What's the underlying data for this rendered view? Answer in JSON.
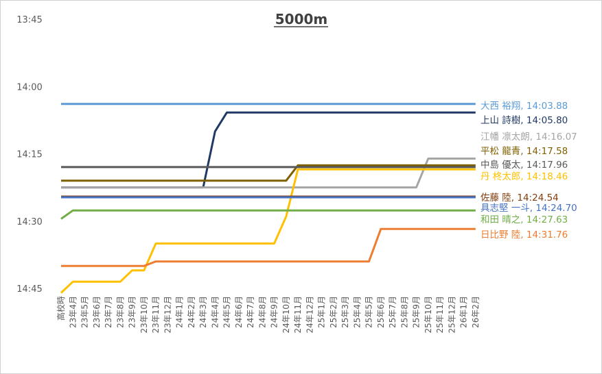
{
  "chart_data": {
    "type": "line",
    "title": "5000m",
    "xlabel": "",
    "ylabel": "",
    "y_reversed": true,
    "ylim": [
      "13:45",
      "14:45"
    ],
    "y_ticks": [
      "13:45",
      "14:00",
      "14:15",
      "14:30",
      "14:45"
    ],
    "categories": [
      "高校時",
      "23年4月",
      "23年5月",
      "23年6月",
      "23年7月",
      "23年8月",
      "23年9月",
      "23年10月",
      "23年11月",
      "23年12月",
      "24年1月",
      "24年2月",
      "24年3月",
      "24年4月",
      "24年5月",
      "24年6月",
      "24年7月",
      "24年8月",
      "24年9月",
      "24年10月",
      "24年11月",
      "24年12月",
      "25年1月",
      "25年2月",
      "25年3月",
      "25年4月",
      "25年5月",
      "25年6月",
      "25年7月",
      "25年8月",
      "25年9月",
      "25年10月",
      "25年11月",
      "25年12月",
      "26年1月",
      "26年2月"
    ],
    "grid": false,
    "legend": "right-end labels",
    "series": [
      {
        "label": "大西 裕翔, 14:03.88",
        "color": "#5b9bd5",
        "values": [
          843.88,
          843.88,
          843.88,
          843.88,
          843.88,
          843.88,
          843.88,
          843.88,
          843.88,
          843.88,
          843.88,
          843.88,
          843.88,
          843.88,
          843.88,
          843.88,
          843.88,
          843.88,
          843.88,
          843.88,
          843.88,
          843.88,
          843.88,
          843.88,
          843.88,
          843.88,
          843.88,
          843.88,
          843.88,
          843.88,
          843.88,
          843.88,
          843.88,
          843.88,
          843.88,
          843.88
        ]
      },
      {
        "label": "上山 詩樹, 14:05.80",
        "color": "#203864",
        "values": [
          862.5,
          862.5,
          862.5,
          862.5,
          862.5,
          862.5,
          862.5,
          862.5,
          862.5,
          862.5,
          862.5,
          862.5,
          862.5,
          850.0,
          845.8,
          845.8,
          845.8,
          845.8,
          845.8,
          845.8,
          845.8,
          845.8,
          845.8,
          845.8,
          845.8,
          845.8,
          845.8,
          845.8,
          845.8,
          845.8,
          845.8,
          845.8,
          845.8,
          845.8,
          845.8,
          845.8
        ]
      },
      {
        "label": "江幡 凛太朗, 14:16.07",
        "color": "#a5a5a5",
        "values": [
          862.5,
          862.5,
          862.5,
          862.5,
          862.5,
          862.5,
          862.5,
          862.5,
          862.5,
          862.5,
          862.5,
          862.5,
          862.5,
          862.5,
          862.5,
          862.5,
          862.5,
          862.5,
          862.5,
          862.5,
          862.5,
          862.5,
          862.5,
          862.5,
          862.5,
          862.5,
          862.5,
          862.5,
          862.5,
          862.5,
          862.5,
          856.07,
          856.07,
          856.07,
          856.07,
          856.07
        ]
      },
      {
        "label": "平松 龍青, 14:17.58",
        "color": "#7f6000",
        "values": [
          861.0,
          861.0,
          861.0,
          861.0,
          861.0,
          861.0,
          861.0,
          861.0,
          861.0,
          861.0,
          861.0,
          861.0,
          861.0,
          861.0,
          861.0,
          861.0,
          861.0,
          861.0,
          861.0,
          861.0,
          857.58,
          857.58,
          857.58,
          857.58,
          857.58,
          857.58,
          857.58,
          857.58,
          857.58,
          857.58,
          857.58,
          857.58,
          857.58,
          857.58,
          857.58,
          857.58
        ]
      },
      {
        "label": "中島 優太, 14:17.96",
        "color": "#595959",
        "values": [
          857.96,
          857.96,
          857.96,
          857.96,
          857.96,
          857.96,
          857.96,
          857.96,
          857.96,
          857.96,
          857.96,
          857.96,
          857.96,
          857.96,
          857.96,
          857.96,
          857.96,
          857.96,
          857.96,
          857.96,
          857.96,
          857.96,
          857.96,
          857.96,
          857.96,
          857.96,
          857.96,
          857.96,
          857.96,
          857.96,
          857.96,
          857.96,
          857.96,
          857.96,
          857.96,
          857.96
        ]
      },
      {
        "label": "丹 柊太郎, 14:18.46",
        "color": "#ffc000",
        "values": [
          886.0,
          883.5,
          883.5,
          883.5,
          883.5,
          883.5,
          881.0,
          881.0,
          875.0,
          875.0,
          875.0,
          875.0,
          875.0,
          875.0,
          875.0,
          875.0,
          875.0,
          875.0,
          875.0,
          869.0,
          858.46,
          858.46,
          858.46,
          858.46,
          858.46,
          858.46,
          858.46,
          858.46,
          858.46,
          858.46,
          858.46,
          858.46,
          858.46,
          858.46,
          858.46,
          858.46
        ]
      },
      {
        "label": "佐藤 陸, 14:24.54",
        "color": "#843c0c",
        "values": [
          864.54,
          864.54,
          864.54,
          864.54,
          864.54,
          864.54,
          864.54,
          864.54,
          864.54,
          864.54,
          864.54,
          864.54,
          864.54,
          864.54,
          864.54,
          864.54,
          864.54,
          864.54,
          864.54,
          864.54,
          864.54,
          864.54,
          864.54,
          864.54,
          864.54,
          864.54,
          864.54,
          864.54,
          864.54,
          864.54,
          864.54,
          864.54,
          864.54,
          864.54,
          864.54,
          864.54
        ]
      },
      {
        "label": "具志堅 一斗, 14:24.70",
        "color": "#4472c4",
        "values": [
          864.7,
          864.7,
          864.7,
          864.7,
          864.7,
          864.7,
          864.7,
          864.7,
          864.7,
          864.7,
          864.7,
          864.7,
          864.7,
          864.7,
          864.7,
          864.7,
          864.7,
          864.7,
          864.7,
          864.7,
          864.7,
          864.7,
          864.7,
          864.7,
          864.7,
          864.7,
          864.7,
          864.7,
          864.7,
          864.7,
          864.7,
          864.7,
          864.7,
          864.7,
          864.7,
          864.7
        ]
      },
      {
        "label": "和田 晴之, 14:27.63",
        "color": "#70ad47",
        "values": [
          869.5,
          867.63,
          867.63,
          867.63,
          867.63,
          867.63,
          867.63,
          867.63,
          867.63,
          867.63,
          867.63,
          867.63,
          867.63,
          867.63,
          867.63,
          867.63,
          867.63,
          867.63,
          867.63,
          867.63,
          867.63,
          867.63,
          867.63,
          867.63,
          867.63,
          867.63,
          867.63,
          867.63,
          867.63,
          867.63,
          867.63,
          867.63,
          867.63,
          867.63,
          867.63,
          867.63
        ]
      },
      {
        "label": "日比野 陸, 14:31.76",
        "color": "#ed7d31",
        "values": [
          880.0,
          880.0,
          880.0,
          880.0,
          880.0,
          880.0,
          880.0,
          880.0,
          879.0,
          879.0,
          879.0,
          879.0,
          879.0,
          879.0,
          879.0,
          879.0,
          879.0,
          879.0,
          879.0,
          879.0,
          879.0,
          879.0,
          879.0,
          879.0,
          879.0,
          879.0,
          879.0,
          871.76,
          871.76,
          871.76,
          871.76,
          871.76,
          871.76,
          871.76,
          871.76,
          871.76
        ]
      }
    ]
  }
}
